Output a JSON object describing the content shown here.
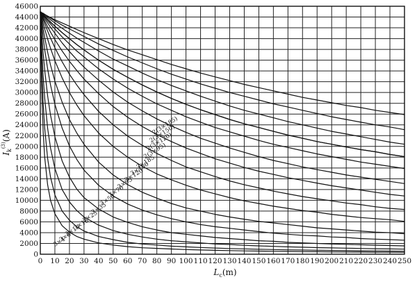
{
  "chart_data": {
    "type": "line",
    "xlabel": "L_c(m)",
    "xlabel_main": "L",
    "xlabel_sub": "c",
    "xlabel_unit": "(m)",
    "ylabel": "I_k^(3)(A)",
    "ylabel_main": "I",
    "ylabel_sub": "k",
    "ylabel_sup": "(3)",
    "ylabel_unit": "(A)",
    "xlim": [
      0,
      250
    ],
    "ylim": [
      0,
      46000
    ],
    "grid": true,
    "x_ticks": [
      0,
      10,
      20,
      30,
      40,
      50,
      60,
      70,
      80,
      90,
      100,
      110,
      120,
      130,
      140,
      150,
      160,
      170,
      180,
      190,
      200,
      210,
      220,
      230,
      240,
      250
    ],
    "y_ticks": [
      0,
      2000,
      4000,
      6000,
      8000,
      10000,
      12000,
      14000,
      16000,
      18000,
      20000,
      22000,
      24000,
      26000,
      28000,
      30000,
      32000,
      34000,
      36000,
      38000,
      40000,
      42000,
      44000,
      46000
    ],
    "x": [
      0,
      1,
      2,
      3,
      5,
      7,
      10,
      15,
      20,
      25,
      30,
      40,
      50,
      60,
      70,
      80,
      90,
      100,
      110,
      120,
      130,
      140,
      150,
      160,
      170,
      180,
      190,
      200,
      210,
      220,
      230,
      240,
      250
    ],
    "series": [
      {
        "name": "3×4",
        "values": [
          45000,
          30000,
          22500,
          18000,
          12900,
          10000,
          7500,
          5300,
          4100,
          3300,
          2800,
          2100,
          1700,
          1400,
          1200,
          1080,
          960,
          860,
          790,
          720,
          670,
          620,
          580,
          540,
          510,
          480,
          460,
          430,
          410,
          400,
          380,
          360,
          350
        ]
      },
      {
        "name": "3×6",
        "values": [
          45000,
          34400,
          27900,
          23400,
          17800,
          14300,
          11000,
          8000,
          6300,
          5100,
          4300,
          3300,
          2700,
          2200,
          1900,
          1700,
          1500,
          1370,
          1250,
          1150,
          1060,
          990,
          920,
          860,
          810,
          770,
          730,
          690,
          660,
          630,
          600,
          580,
          550
        ]
      },
      {
        "name": "3×10",
        "values": [
          45000,
          38000,
          32900,
          29000,
          23400,
          19700,
          15900,
          12000,
          9700,
          8100,
          6900,
          5400,
          4400,
          3700,
          3200,
          2800,
          2500,
          2300,
          2100,
          1900,
          1800,
          1650,
          1550,
          1450,
          1370,
          1300,
          1230,
          1170,
          1120,
          1070,
          1020,
          980,
          940
        ]
      },
      {
        "name": "3×16",
        "values": [
          45000,
          40700,
          37200,
          34200,
          29400,
          25800,
          21800,
          17300,
          14300,
          12100,
          10500,
          8400,
          6900,
          5900,
          5100,
          4500,
          4000,
          3700,
          3400,
          3100,
          2900,
          2700,
          2500,
          2400,
          2200,
          2100,
          2000,
          1900,
          1830,
          1750,
          1680,
          1610,
          1550
        ]
      },
      {
        "name": "3×25",
        "values": [
          45000,
          42400,
          40100,
          38000,
          34400,
          31400,
          27800,
          23400,
          20100,
          17600,
          15600,
          12800,
          10800,
          9300,
          8200,
          7300,
          6600,
          6000,
          5500,
          5100,
          4800,
          4500,
          4200,
          3900,
          3700,
          3500,
          3400,
          3200,
          3100,
          2900,
          2800,
          2700,
          2600
        ]
      },
      {
        "name": "3×35",
        "values": [
          45000,
          43300,
          41700,
          40200,
          37500,
          35100,
          32100,
          28200,
          25000,
          22500,
          20400,
          17100,
          14700,
          12900,
          11500,
          10400,
          9400,
          8600,
          8000,
          7400,
          6900,
          6500,
          6100,
          5800,
          5500,
          5200,
          4900,
          4700,
          4500,
          4300,
          4100,
          4000,
          3800
        ]
      },
      {
        "name": "3×50",
        "values": [
          45000,
          43900,
          42800,
          41800,
          39900,
          38200,
          35900,
          32700,
          30000,
          27700,
          25700,
          22500,
          20000,
          18000,
          16300,
          14900,
          13800,
          12800,
          11900,
          11200,
          10500,
          9900,
          9400,
          8900,
          8500,
          8100,
          7800,
          7400,
          7100,
          6800,
          6600,
          6400,
          6100
        ]
      },
      {
        "name": "3×70",
        "values": [
          45000,
          44200,
          43500,
          42800,
          41400,
          40100,
          38300,
          35700,
          33400,
          31400,
          29600,
          26500,
          24000,
          21900,
          20200,
          18700,
          17400,
          16200,
          15300,
          14400,
          13600,
          12900,
          12300,
          11700,
          11200,
          10700,
          10300,
          9900,
          9500,
          9200,
          8800,
          8500,
          8300
        ]
      },
      {
        "name": "3×95",
        "values": [
          45000,
          44400,
          43800,
          43300,
          42200,
          41200,
          39800,
          37700,
          35800,
          34100,
          32500,
          29800,
          27400,
          25400,
          23700,
          22200,
          20900,
          19700,
          18700,
          17700,
          16900,
          16100,
          15400,
          14800,
          14200,
          13700,
          13200,
          12700,
          12300,
          11900,
          11500,
          11100,
          10800
        ]
      },
      {
        "name": "3×120",
        "values": [
          45000,
          44600,
          44100,
          43700,
          42900,
          42100,
          41000,
          39200,
          37600,
          36100,
          34700,
          32300,
          30100,
          28200,
          26600,
          25100,
          23800,
          22600,
          21500,
          20600,
          19700,
          18900,
          18100,
          17400,
          16800,
          16200,
          15700,
          15200,
          14700,
          14300,
          13900,
          13500,
          13100
        ]
      },
      {
        "name": "3×150",
        "values": [
          45000,
          44600,
          44300,
          44000,
          43300,
          42700,
          41800,
          40300,
          39000,
          37700,
          36600,
          34400,
          32500,
          30800,
          29300,
          27900,
          26700,
          25500,
          24500,
          23500,
          22700,
          21900,
          21100,
          20400,
          19800,
          19200,
          18600,
          18100,
          17600,
          17100,
          16700,
          16300,
          15900
        ]
      },
      {
        "name": "3×185",
        "values": [
          45000,
          44700,
          44400,
          44100,
          43600,
          43100,
          42300,
          41100,
          40000,
          38900,
          37900,
          36000,
          34300,
          32800,
          31400,
          30100,
          28900,
          27800,
          26800,
          25900,
          25000,
          24200,
          23500,
          22800,
          22100,
          21500,
          20900,
          20400,
          19900,
          19400,
          19000,
          18500,
          18100
        ]
      },
      {
        "name": "2(3×95)",
        "values": [
          45000,
          44700,
          44400,
          44100,
          43600,
          43000,
          42300,
          41100,
          40000,
          38900,
          37900,
          36000,
          34300,
          32800,
          31400,
          30100,
          28900,
          27800,
          26800,
          25900,
          25000,
          24200,
          23500,
          22800,
          22100,
          21500,
          20900,
          20400,
          19900,
          19400,
          19000,
          18500,
          18100
        ]
      },
      {
        "name": "2(3×120)",
        "values": [
          45000,
          44800,
          44600,
          44300,
          43900,
          43500,
          42900,
          41900,
          41000,
          40100,
          39300,
          37700,
          36200,
          34900,
          33600,
          32400,
          31300,
          30300,
          29300,
          28400,
          27500,
          26700,
          26000,
          25300,
          24600,
          24000,
          23400,
          22800,
          22300,
          21800,
          21300,
          20800,
          20400
        ]
      },
      {
        "name": "2(3×150)",
        "values": [
          45000,
          44800,
          44600,
          44500,
          44100,
          43800,
          43300,
          42500,
          41800,
          41100,
          40400,
          39000,
          37800,
          36600,
          35500,
          34400,
          33400,
          32500,
          31600,
          30800,
          30000,
          29300,
          28600,
          27900,
          27300,
          26700,
          26100,
          25500,
          25000,
          24500,
          24000,
          23600,
          23100
        ]
      },
      {
        "name": "2(3×185)",
        "values": [
          45000,
          44800,
          44700,
          44500,
          44200,
          43900,
          43500,
          42900,
          42300,
          41700,
          41100,
          40000,
          38900,
          37900,
          37000,
          36100,
          35200,
          34400,
          33600,
          32900,
          32200,
          31500,
          30900,
          30300,
          29700,
          29100,
          28600,
          28100,
          27600,
          27200,
          26700,
          26300,
          25900
        ]
      }
    ],
    "curve_labels": [
      {
        "text": "2(3×185)",
        "x": 78,
        "y": 22200
      },
      {
        "text": "2(3×150)",
        "x": 76,
        "y": 20700
      },
      {
        "text": "2(3×120)",
        "x": 74,
        "y": 19200
      },
      {
        "text": "2(3×95)",
        "x": 72,
        "y": 17700
      },
      {
        "text": "3×185",
        "x": 67,
        "y": 15800
      },
      {
        "text": "3×150",
        "x": 63,
        "y": 14600
      },
      {
        "text": "3×120",
        "x": 59,
        "y": 13400
      },
      {
        "text": "3×95",
        "x": 54,
        "y": 12100
      },
      {
        "text": "3×70",
        "x": 48,
        "y": 10600
      },
      {
        "text": "3×50",
        "x": 42,
        "y": 9000
      },
      {
        "text": "3×35",
        "x": 36,
        "y": 7400
      },
      {
        "text": "3×25",
        "x": 30,
        "y": 5900
      },
      {
        "text": "3×16",
        "x": 24,
        "y": 4500
      },
      {
        "text": "3×10",
        "x": 18,
        "y": 3300
      },
      {
        "text": "3×6",
        "x": 14,
        "y": 2300
      },
      {
        "text": "3×4",
        "x": 10,
        "y": 1400
      }
    ]
  }
}
